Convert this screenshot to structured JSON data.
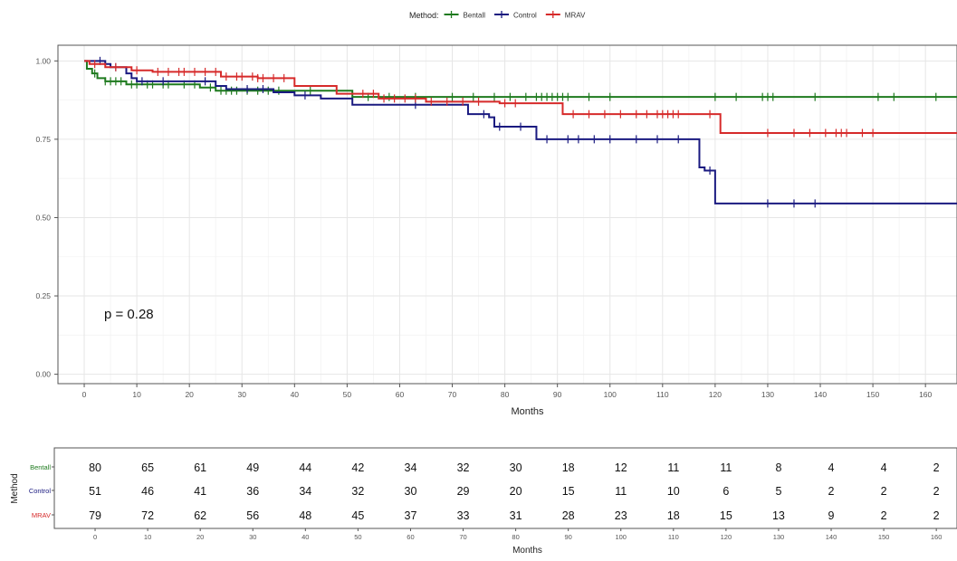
{
  "chart_data": {
    "type": "line",
    "legend": {
      "title": "Method:",
      "placement": "top"
    },
    "xlabel": "Months",
    "ylabel": "",
    "xlim": [
      -5,
      166
    ],
    "ylim": [
      -0.03,
      1.05
    ],
    "x_ticks": [
      0,
      10,
      20,
      30,
      40,
      50,
      60,
      70,
      80,
      90,
      100,
      110,
      120,
      130,
      140,
      150,
      160
    ],
    "y_ticks": [
      0.0,
      0.25,
      0.5,
      0.75,
      1.0
    ],
    "y_tick_labels": [
      "0.00",
      "0.25",
      "0.50",
      "0.75",
      "1.00"
    ],
    "grid": true,
    "annotation": "p = 0.28",
    "series": [
      {
        "name": "Bentall",
        "color": "#1e7a1e",
        "steps": [
          [
            0,
            1.0
          ],
          [
            0.5,
            0.975
          ],
          [
            1.5,
            0.96
          ],
          [
            2.5,
            0.945
          ],
          [
            4,
            0.935
          ],
          [
            8,
            0.925
          ],
          [
            22,
            0.915
          ],
          [
            25,
            0.905
          ],
          [
            40,
            0.905
          ],
          [
            51,
            0.885
          ],
          [
            166,
            0.885
          ]
        ],
        "censors": [
          2,
          4,
          5,
          6,
          7,
          9,
          10,
          12,
          13,
          15,
          16,
          19,
          21,
          24,
          26,
          27,
          28,
          29,
          31,
          33,
          35,
          37,
          43,
          54,
          58,
          63,
          70,
          74,
          78,
          81,
          84,
          86,
          87,
          88,
          89,
          90,
          91,
          92,
          96,
          100,
          120,
          124,
          129,
          130,
          131,
          139,
          151,
          154,
          162
        ]
      },
      {
        "name": "Control",
        "color": "#1a1a80",
        "steps": [
          [
            0,
            1.0
          ],
          [
            4,
            0.99
          ],
          [
            5,
            0.98
          ],
          [
            8,
            0.96
          ],
          [
            9,
            0.945
          ],
          [
            10,
            0.935
          ],
          [
            25,
            0.92
          ],
          [
            27,
            0.91
          ],
          [
            36,
            0.9
          ],
          [
            40,
            0.89
          ],
          [
            45,
            0.88
          ],
          [
            51,
            0.86
          ],
          [
            65,
            0.86
          ],
          [
            73,
            0.83
          ],
          [
            77,
            0.82
          ],
          [
            78,
            0.79
          ],
          [
            86,
            0.75
          ],
          [
            117,
            0.66
          ],
          [
            118,
            0.65
          ],
          [
            120,
            0.545
          ],
          [
            166,
            0.545
          ]
        ],
        "censors": [
          3,
          6,
          11,
          15,
          23,
          31,
          34,
          42,
          63,
          76,
          79,
          83,
          88,
          92,
          94,
          97,
          100,
          105,
          109,
          113,
          119,
          130,
          135,
          139
        ]
      },
      {
        "name": "MRAV",
        "color": "#d62a2a",
        "steps": [
          [
            0,
            1.0
          ],
          [
            1,
            0.99
          ],
          [
            4,
            0.98
          ],
          [
            9,
            0.97
          ],
          [
            13,
            0.965
          ],
          [
            26,
            0.95
          ],
          [
            33,
            0.945
          ],
          [
            40,
            0.92
          ],
          [
            48,
            0.895
          ],
          [
            56,
            0.88
          ],
          [
            65,
            0.87
          ],
          [
            79,
            0.865
          ],
          [
            91,
            0.83
          ],
          [
            121,
            0.77
          ],
          [
            166,
            0.77
          ]
        ],
        "censors": [
          2,
          6,
          10,
          14,
          16,
          18,
          19,
          21,
          23,
          25,
          27,
          29,
          30,
          32,
          33,
          34,
          36,
          38,
          53,
          55,
          57,
          59,
          61,
          63,
          66,
          69,
          72,
          75,
          80,
          82,
          93,
          96,
          99,
          102,
          105,
          107,
          109,
          110,
          111,
          112,
          113,
          119,
          130,
          135,
          138,
          141,
          143,
          144,
          145,
          148,
          150
        ]
      }
    ],
    "risk_table": {
      "ylabel": "Method",
      "xlabel": "Months",
      "x": [
        0,
        10,
        20,
        30,
        40,
        50,
        60,
        70,
        80,
        90,
        100,
        110,
        120,
        130,
        140,
        150,
        160
      ],
      "rows": [
        {
          "name": "Bentall",
          "color": "#1e7a1e",
          "values": [
            80,
            65,
            61,
            49,
            44,
            42,
            34,
            32,
            30,
            18,
            12,
            11,
            11,
            8,
            4,
            4,
            2
          ]
        },
        {
          "name": "Control",
          "color": "#1a1a80",
          "values": [
            51,
            46,
            41,
            36,
            34,
            32,
            30,
            29,
            20,
            15,
            11,
            10,
            6,
            5,
            2,
            2,
            2
          ]
        },
        {
          "name": "MRAV",
          "color": "#d62a2a",
          "values": [
            79,
            72,
            62,
            56,
            48,
            45,
            37,
            33,
            31,
            28,
            23,
            18,
            15,
            13,
            9,
            2,
            2
          ]
        }
      ]
    }
  }
}
